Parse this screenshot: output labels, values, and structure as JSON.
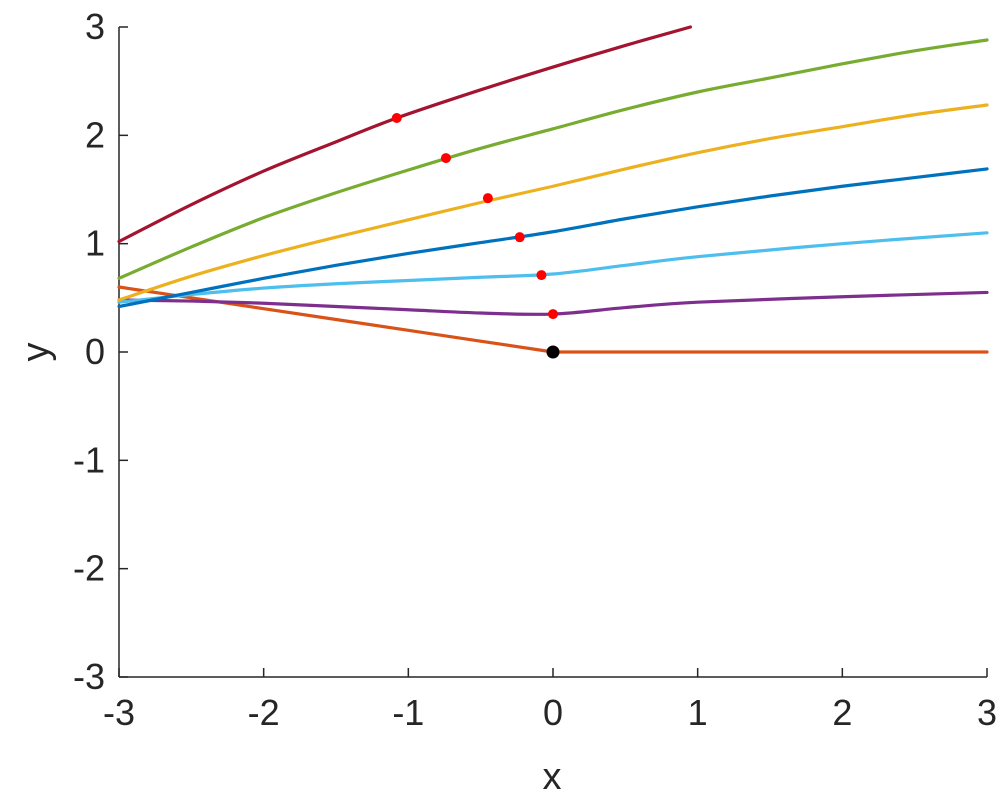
{
  "chart_data": {
    "type": "line",
    "title": "",
    "xlabel": "x",
    "ylabel": "y",
    "xlim": [
      -3,
      3
    ],
    "ylim": [
      -3,
      3
    ],
    "xticks": [
      "-3",
      "-2",
      "-1",
      "0",
      "1",
      "2",
      "3"
    ],
    "yticks": [
      "-3",
      "-2",
      "-1",
      "0",
      "1",
      "2",
      "3"
    ],
    "grid": false,
    "legend": "none",
    "series": [
      {
        "color": "#D95319",
        "x": [
          -3,
          -2.5,
          -2,
          -1.5,
          -1,
          -0.5,
          0,
          1,
          2,
          3
        ],
        "y": [
          0.6,
          0.5,
          0.4,
          0.3,
          0.2,
          0.1,
          0,
          0,
          0,
          0
        ],
        "marker": [
          0,
          0
        ],
        "marker_color": "#000000"
      },
      {
        "color": "#7E2F8E",
        "x": [
          -3,
          -2.5,
          -2,
          -1.5,
          -1,
          -0.5,
          0,
          0.5,
          1,
          2,
          3
        ],
        "y": [
          0.48,
          0.47,
          0.45,
          0.42,
          0.39,
          0.36,
          0.35,
          0.41,
          0.46,
          0.51,
          0.55
        ],
        "marker": [
          0,
          0.35
        ],
        "marker_color": "#FF0000"
      },
      {
        "color": "#4DBEEE",
        "x": [
          -3,
          -2.5,
          -2,
          -1.5,
          -1,
          -0.5,
          0,
          0.5,
          1,
          2,
          3
        ],
        "y": [
          0.46,
          0.53,
          0.59,
          0.63,
          0.66,
          0.69,
          0.72,
          0.8,
          0.88,
          1.0,
          1.1
        ],
        "marker": [
          -0.08,
          0.71
        ],
        "marker_color": "#FF0000"
      },
      {
        "color": "#0072BD",
        "x": [
          -3,
          -2.5,
          -2,
          -1.5,
          -1,
          -0.5,
          0,
          0.5,
          1,
          1.5,
          2,
          2.5,
          3
        ],
        "y": [
          0.42,
          0.55,
          0.68,
          0.8,
          0.91,
          1.01,
          1.11,
          1.23,
          1.34,
          1.44,
          1.53,
          1.61,
          1.69
        ],
        "marker": [
          -0.23,
          1.06
        ],
        "marker_color": "#FF0000"
      },
      {
        "color": "#EDB120",
        "x": [
          -3,
          -2.5,
          -2,
          -1.5,
          -1,
          -0.5,
          0,
          0.5,
          1,
          1.5,
          2,
          2.5,
          3
        ],
        "y": [
          0.48,
          0.7,
          0.89,
          1.06,
          1.22,
          1.38,
          1.53,
          1.69,
          1.84,
          1.97,
          2.08,
          2.19,
          2.28
        ],
        "marker": [
          -0.45,
          1.42
        ],
        "marker_color": "#FF0000"
      },
      {
        "color": "#77AC30",
        "x": [
          -3,
          -2.5,
          -2,
          -1.5,
          -1,
          -0.5,
          0,
          0.5,
          1,
          1.5,
          2,
          2.5,
          3
        ],
        "y": [
          0.68,
          0.97,
          1.24,
          1.47,
          1.68,
          1.88,
          2.06,
          2.24,
          2.4,
          2.53,
          2.66,
          2.78,
          2.88
        ],
        "marker": [
          -0.74,
          1.79
        ],
        "marker_color": "#FF0000"
      },
      {
        "color": "#A2142F",
        "x": [
          -3,
          -2.5,
          -2,
          -1.5,
          -1.08,
          -0.5,
          0,
          0.5,
          0.95
        ],
        "y": [
          1.02,
          1.36,
          1.67,
          1.94,
          2.16,
          2.42,
          2.63,
          2.83,
          3.0
        ],
        "marker": [
          -1.08,
          2.16
        ],
        "marker_color": "#FF0000"
      }
    ]
  }
}
